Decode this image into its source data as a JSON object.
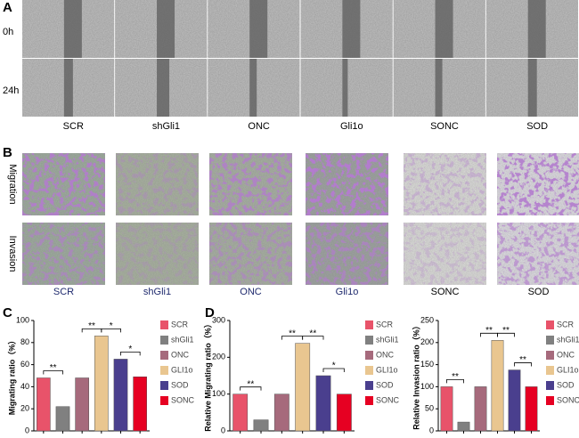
{
  "figure": {
    "panel_a": {
      "letter": "A",
      "rows": [
        "0h",
        "24h"
      ],
      "labels": [
        "SCR",
        "shGli1",
        "ONC",
        "Gli1o",
        "SONC",
        "SOD"
      ]
    },
    "panel_b": {
      "letter": "B",
      "rows": [
        "Migration",
        "Invasion"
      ],
      "labels": [
        "SCR",
        "shGli1",
        "ONC",
        "Gli1o",
        "SONC",
        "SOD"
      ]
    }
  },
  "chart_data": [
    {
      "type": "bar",
      "panel": "C",
      "ylabel": "Migrating ratio（%）",
      "categories": [
        "SCR",
        "shGli1",
        "ONC",
        "GLI1o",
        "SOD",
        "SONC"
      ],
      "values": [
        48,
        22,
        48,
        86,
        65,
        49
      ],
      "colors": [
        "#e8536a",
        "#808080",
        "#a66a7c",
        "#e9c690",
        "#4a3f8e",
        "#e60022"
      ],
      "ylim": [
        0,
        100
      ],
      "yticks": [
        0,
        20,
        40,
        60,
        80,
        100
      ],
      "annotations": [
        "**",
        "**",
        "*",
        "*"
      ]
    },
    {
      "type": "bar",
      "panel": "D",
      "ylabel": "Relative Migrating ratio（%）",
      "categories": [
        "SCR",
        "shGli1",
        "ONC",
        "GLI1o",
        "SOD",
        "SONC"
      ],
      "values": [
        100,
        30,
        100,
        238,
        150,
        100
      ],
      "colors": [
        "#e8536a",
        "#808080",
        "#a66a7c",
        "#e9c690",
        "#4a3f8e",
        "#e60022"
      ],
      "ylim": [
        0,
        300
      ],
      "yticks": [
        0,
        100,
        200,
        300
      ],
      "annotations": [
        "**",
        "**",
        "**",
        "*"
      ]
    },
    {
      "type": "bar",
      "ylabel": "Relative Invasion ratio（%）",
      "categories": [
        "SCR",
        "shGli1",
        "ONC",
        "GLI1o",
        "SOD",
        "SONC"
      ],
      "values": [
        100,
        20,
        100,
        205,
        138,
        100
      ],
      "colors": [
        "#e8536a",
        "#808080",
        "#a66a7c",
        "#e9c690",
        "#4a3f8e",
        "#e60022"
      ],
      "ylim": [
        0,
        250
      ],
      "yticks": [
        0,
        50,
        100,
        150,
        200,
        250
      ],
      "annotations": [
        "**",
        "**",
        "**",
        "**"
      ]
    }
  ]
}
